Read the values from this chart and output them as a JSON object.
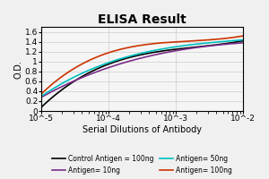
{
  "title": "ELISA Result",
  "ylabel": "O.D.",
  "xlabel": "Serial Dilutions of Antibody",
  "x_values": [
    0.01,
    0.001,
    0.0001,
    1e-05
  ],
  "lines": [
    {
      "label": "Control Antigen = 100ng",
      "color": "#000000",
      "y_values": [
        1.42,
        1.25,
        0.95,
        0.08
      ]
    },
    {
      "label": "Antigen= 10ng",
      "color": "#7B2D8B",
      "y_values": [
        1.38,
        1.22,
        0.88,
        0.28
      ]
    },
    {
      "label": "Antigen= 50ng",
      "color": "#00BFBF",
      "y_values": [
        1.44,
        1.3,
        0.98,
        0.3
      ]
    },
    {
      "label": "Antigen= 100ng",
      "color": "#CC3300",
      "y_values": [
        1.52,
        1.4,
        1.18,
        0.35
      ]
    }
  ],
  "ylim": [
    0,
    1.7
  ],
  "yticks": [
    0,
    0.2,
    0.4,
    0.6,
    0.8,
    1.0,
    1.2,
    1.4,
    1.6
  ],
  "background_color": "#f5f5f5",
  "grid_color": "#cccccc",
  "title_fontsize": 10,
  "label_fontsize": 7,
  "legend_fontsize": 5.5,
  "tick_fontsize": 6.5
}
